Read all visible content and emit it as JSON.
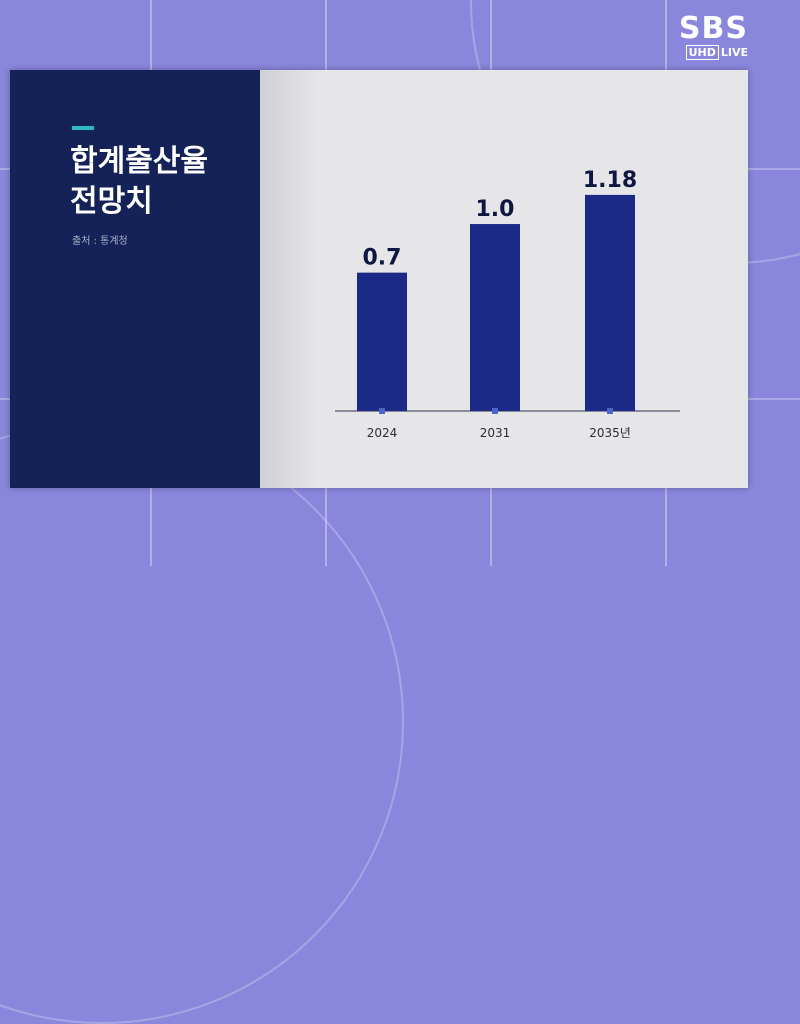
{
  "logo": {
    "brand": "SBS",
    "badge": "UHD",
    "live": "LIVE"
  },
  "panel": {
    "title": "합계출산율\n전망치",
    "source": "출처 : 통계청"
  },
  "colors": {
    "bar": "#1b2a86",
    "panel": "#142257",
    "accent": "#2fb8c4",
    "background": "#8a86dc"
  },
  "chart_data": {
    "type": "bar",
    "title": "합계출산율 전망치",
    "categories": [
      "2024",
      "2031",
      "2035년"
    ],
    "values": [
      0.7,
      1.0,
      1.18
    ],
    "data_labels": [
      "0.7",
      "1.0",
      "1.18"
    ],
    "xlabel": "",
    "ylabel": "",
    "ylim": [
      0,
      1.4
    ],
    "grid": false,
    "legend": "none"
  }
}
